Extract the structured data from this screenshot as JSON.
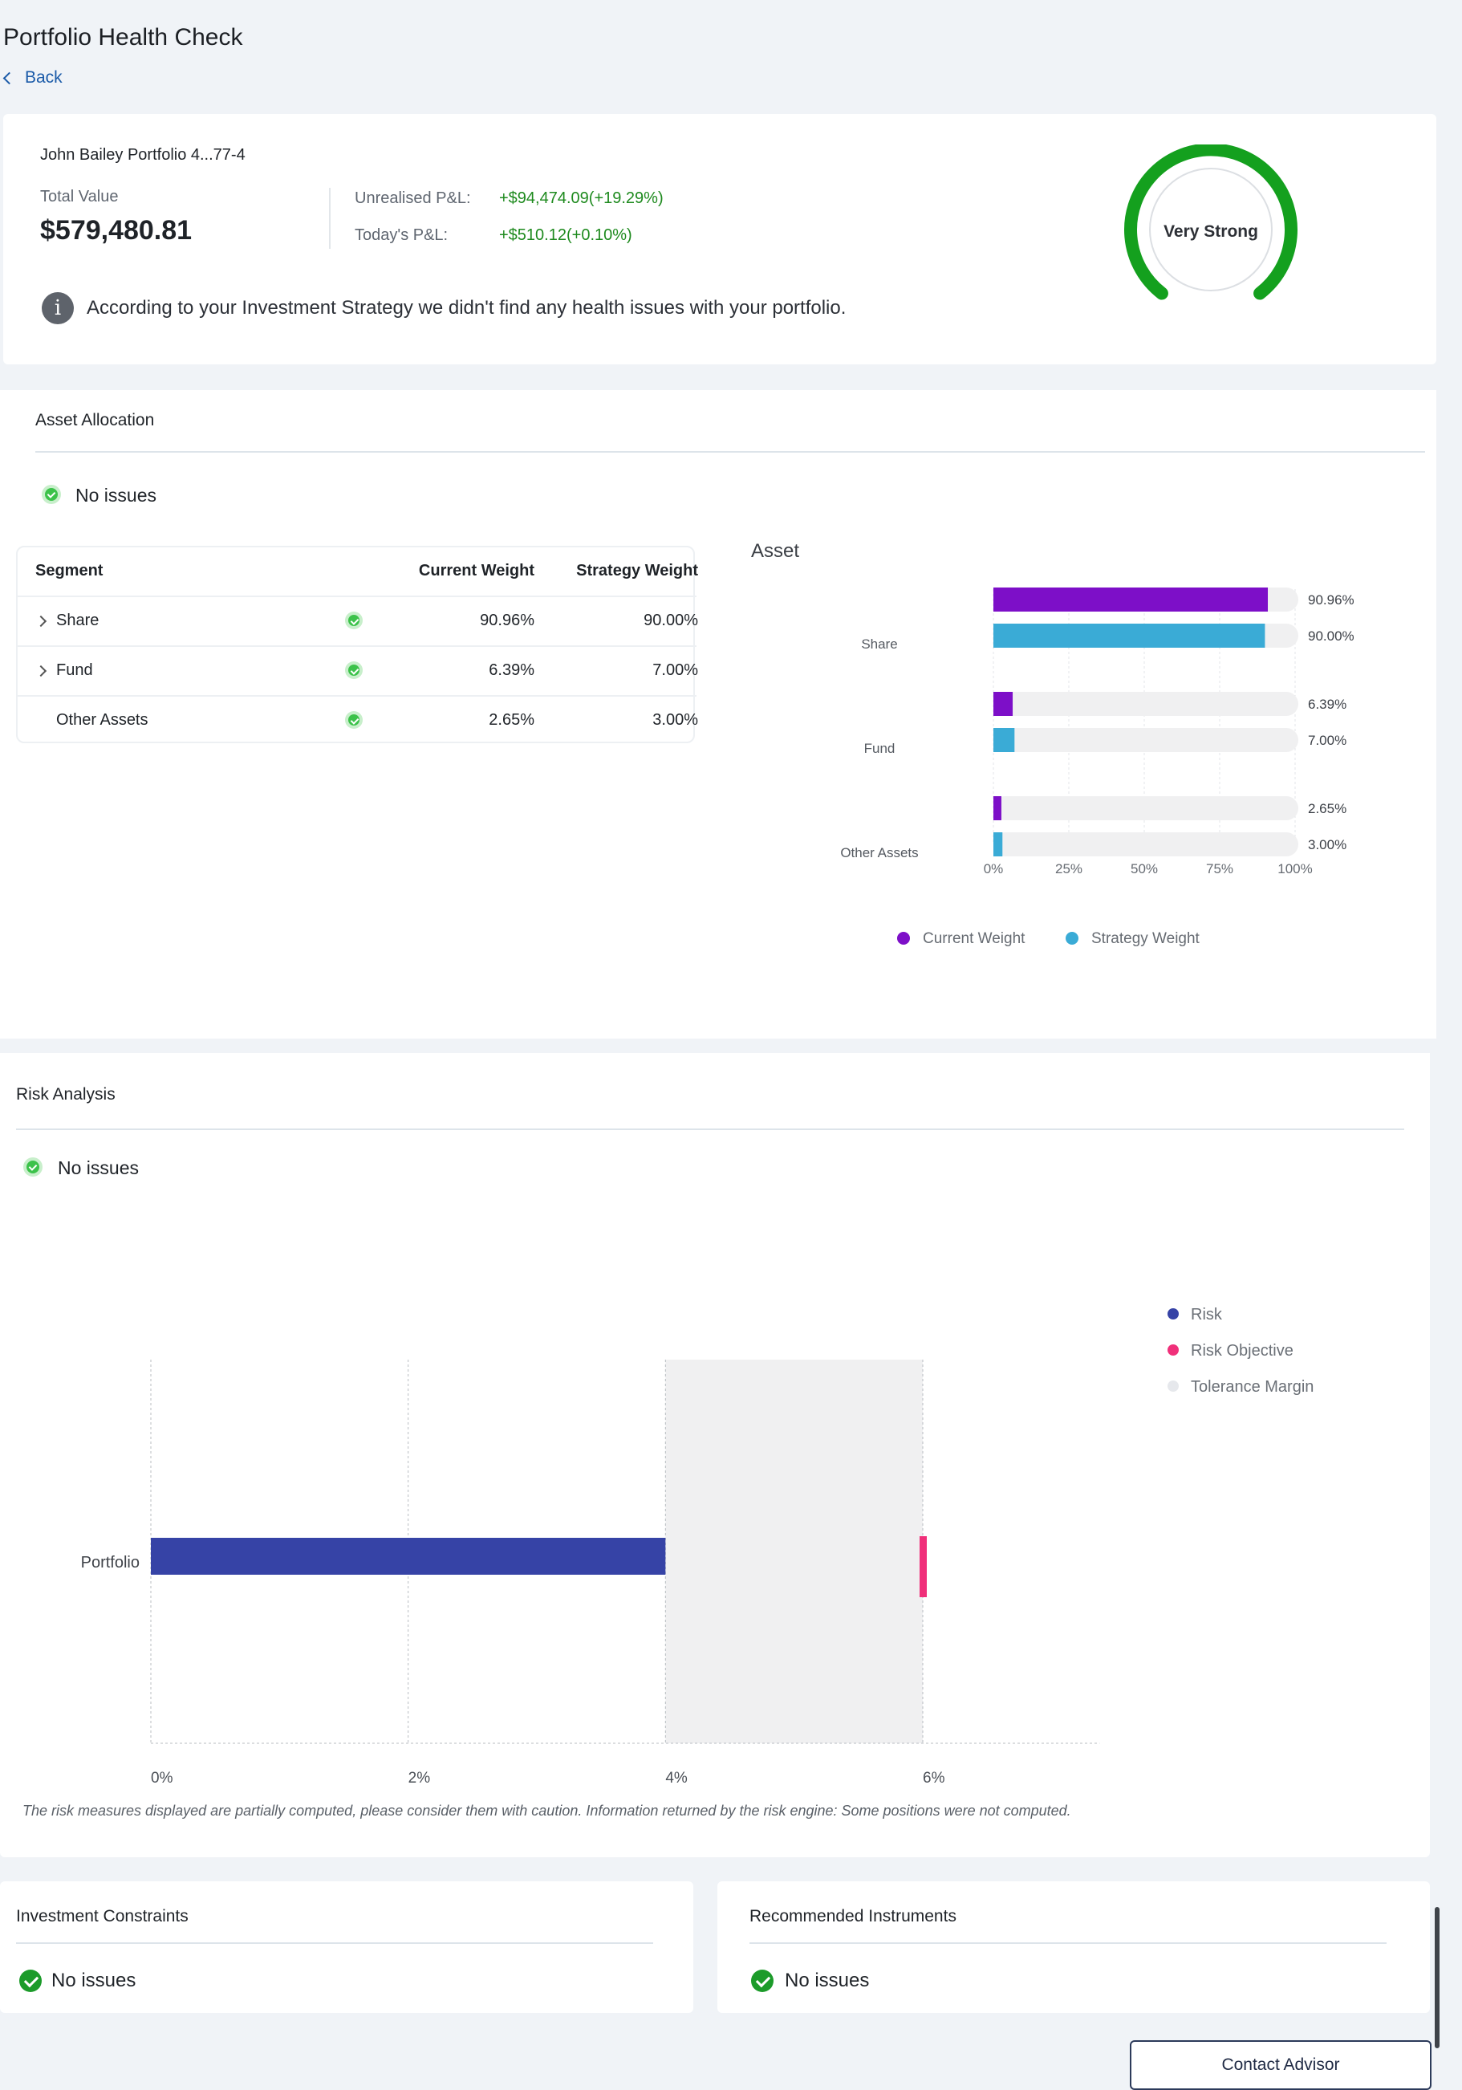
{
  "page": {
    "title": "Portfolio Health Check",
    "back_label": "Back"
  },
  "summary": {
    "portfolio_name": "John Bailey Portfolio 4...77-4",
    "total_value_label": "Total Value",
    "total_value": "$579,480.81",
    "unrealised_label": "Unrealised P&L:",
    "unrealised_value": "+$94,474.09(+19.29%)",
    "today_label": "Today's P&L:",
    "today_value": "+$510.12(+0.10%)",
    "info_text": "According to your Investment Strategy we didn't find any health issues with your portfolio.",
    "gauge_label": "Very Strong",
    "gauge_color": "#14a01e"
  },
  "asset_allocation": {
    "title": "Asset Allocation",
    "status": "No issues",
    "table": {
      "headers": [
        "Segment",
        "Current Weight",
        "Strategy Weight"
      ],
      "rows": [
        {
          "segment": "Share",
          "current": "90.96%",
          "strategy": "90.00%",
          "expandable": true
        },
        {
          "segment": "Fund",
          "current": "6.39%",
          "strategy": "7.00%",
          "expandable": true
        },
        {
          "segment": "Other Assets",
          "current": "2.65%",
          "strategy": "3.00%",
          "expandable": false
        }
      ]
    }
  },
  "risk_analysis": {
    "title": "Risk Analysis",
    "status": "No issues",
    "disclaimer": "The risk measures displayed are partially computed,  please consider them with caution. Information returned by the risk engine: Some positions were not computed."
  },
  "constraints": {
    "title": "Investment Constraints",
    "status": "No issues"
  },
  "instruments": {
    "title": "Recommended Instruments",
    "status": "No issues"
  },
  "contact_button": "Contact Advisor",
  "chart_data": [
    {
      "type": "bar",
      "orientation": "horizontal",
      "title": "Asset",
      "categories": [
        "Share",
        "Fund",
        "Other Assets"
      ],
      "series": [
        {
          "name": "Current Weight",
          "color": "#7d0fc8",
          "values": [
            90.96,
            6.39,
            2.65
          ],
          "labels": [
            "90.96%",
            "6.39%",
            "2.65%"
          ]
        },
        {
          "name": "Strategy Weight",
          "color": "#3aabd6",
          "values": [
            90.0,
            7.0,
            3.0
          ],
          "labels": [
            "90.00%",
            "7.00%",
            "3.00%"
          ]
        }
      ],
      "xlim": [
        0,
        100
      ],
      "xticks": [
        "0%",
        "25%",
        "50%",
        "75%",
        "100%"
      ],
      "grid": true,
      "legend": "bottom"
    },
    {
      "type": "bar",
      "orientation": "horizontal",
      "categories": [
        "Portfolio"
      ],
      "series": [
        {
          "name": "Risk",
          "color": "#3643a6",
          "values": [
            4.0
          ]
        },
        {
          "name": "Risk Objective",
          "color": "#f0307a",
          "values": [
            6.0
          ]
        },
        {
          "name": "Tolerance Margin",
          "color": "#e6e8ec",
          "range": [
            4.0,
            6.0
          ]
        }
      ],
      "xlim": [
        0,
        7
      ],
      "xticks": [
        "0%",
        "2%",
        "4%",
        "6%"
      ],
      "grid": true,
      "legend": "top-right"
    }
  ]
}
